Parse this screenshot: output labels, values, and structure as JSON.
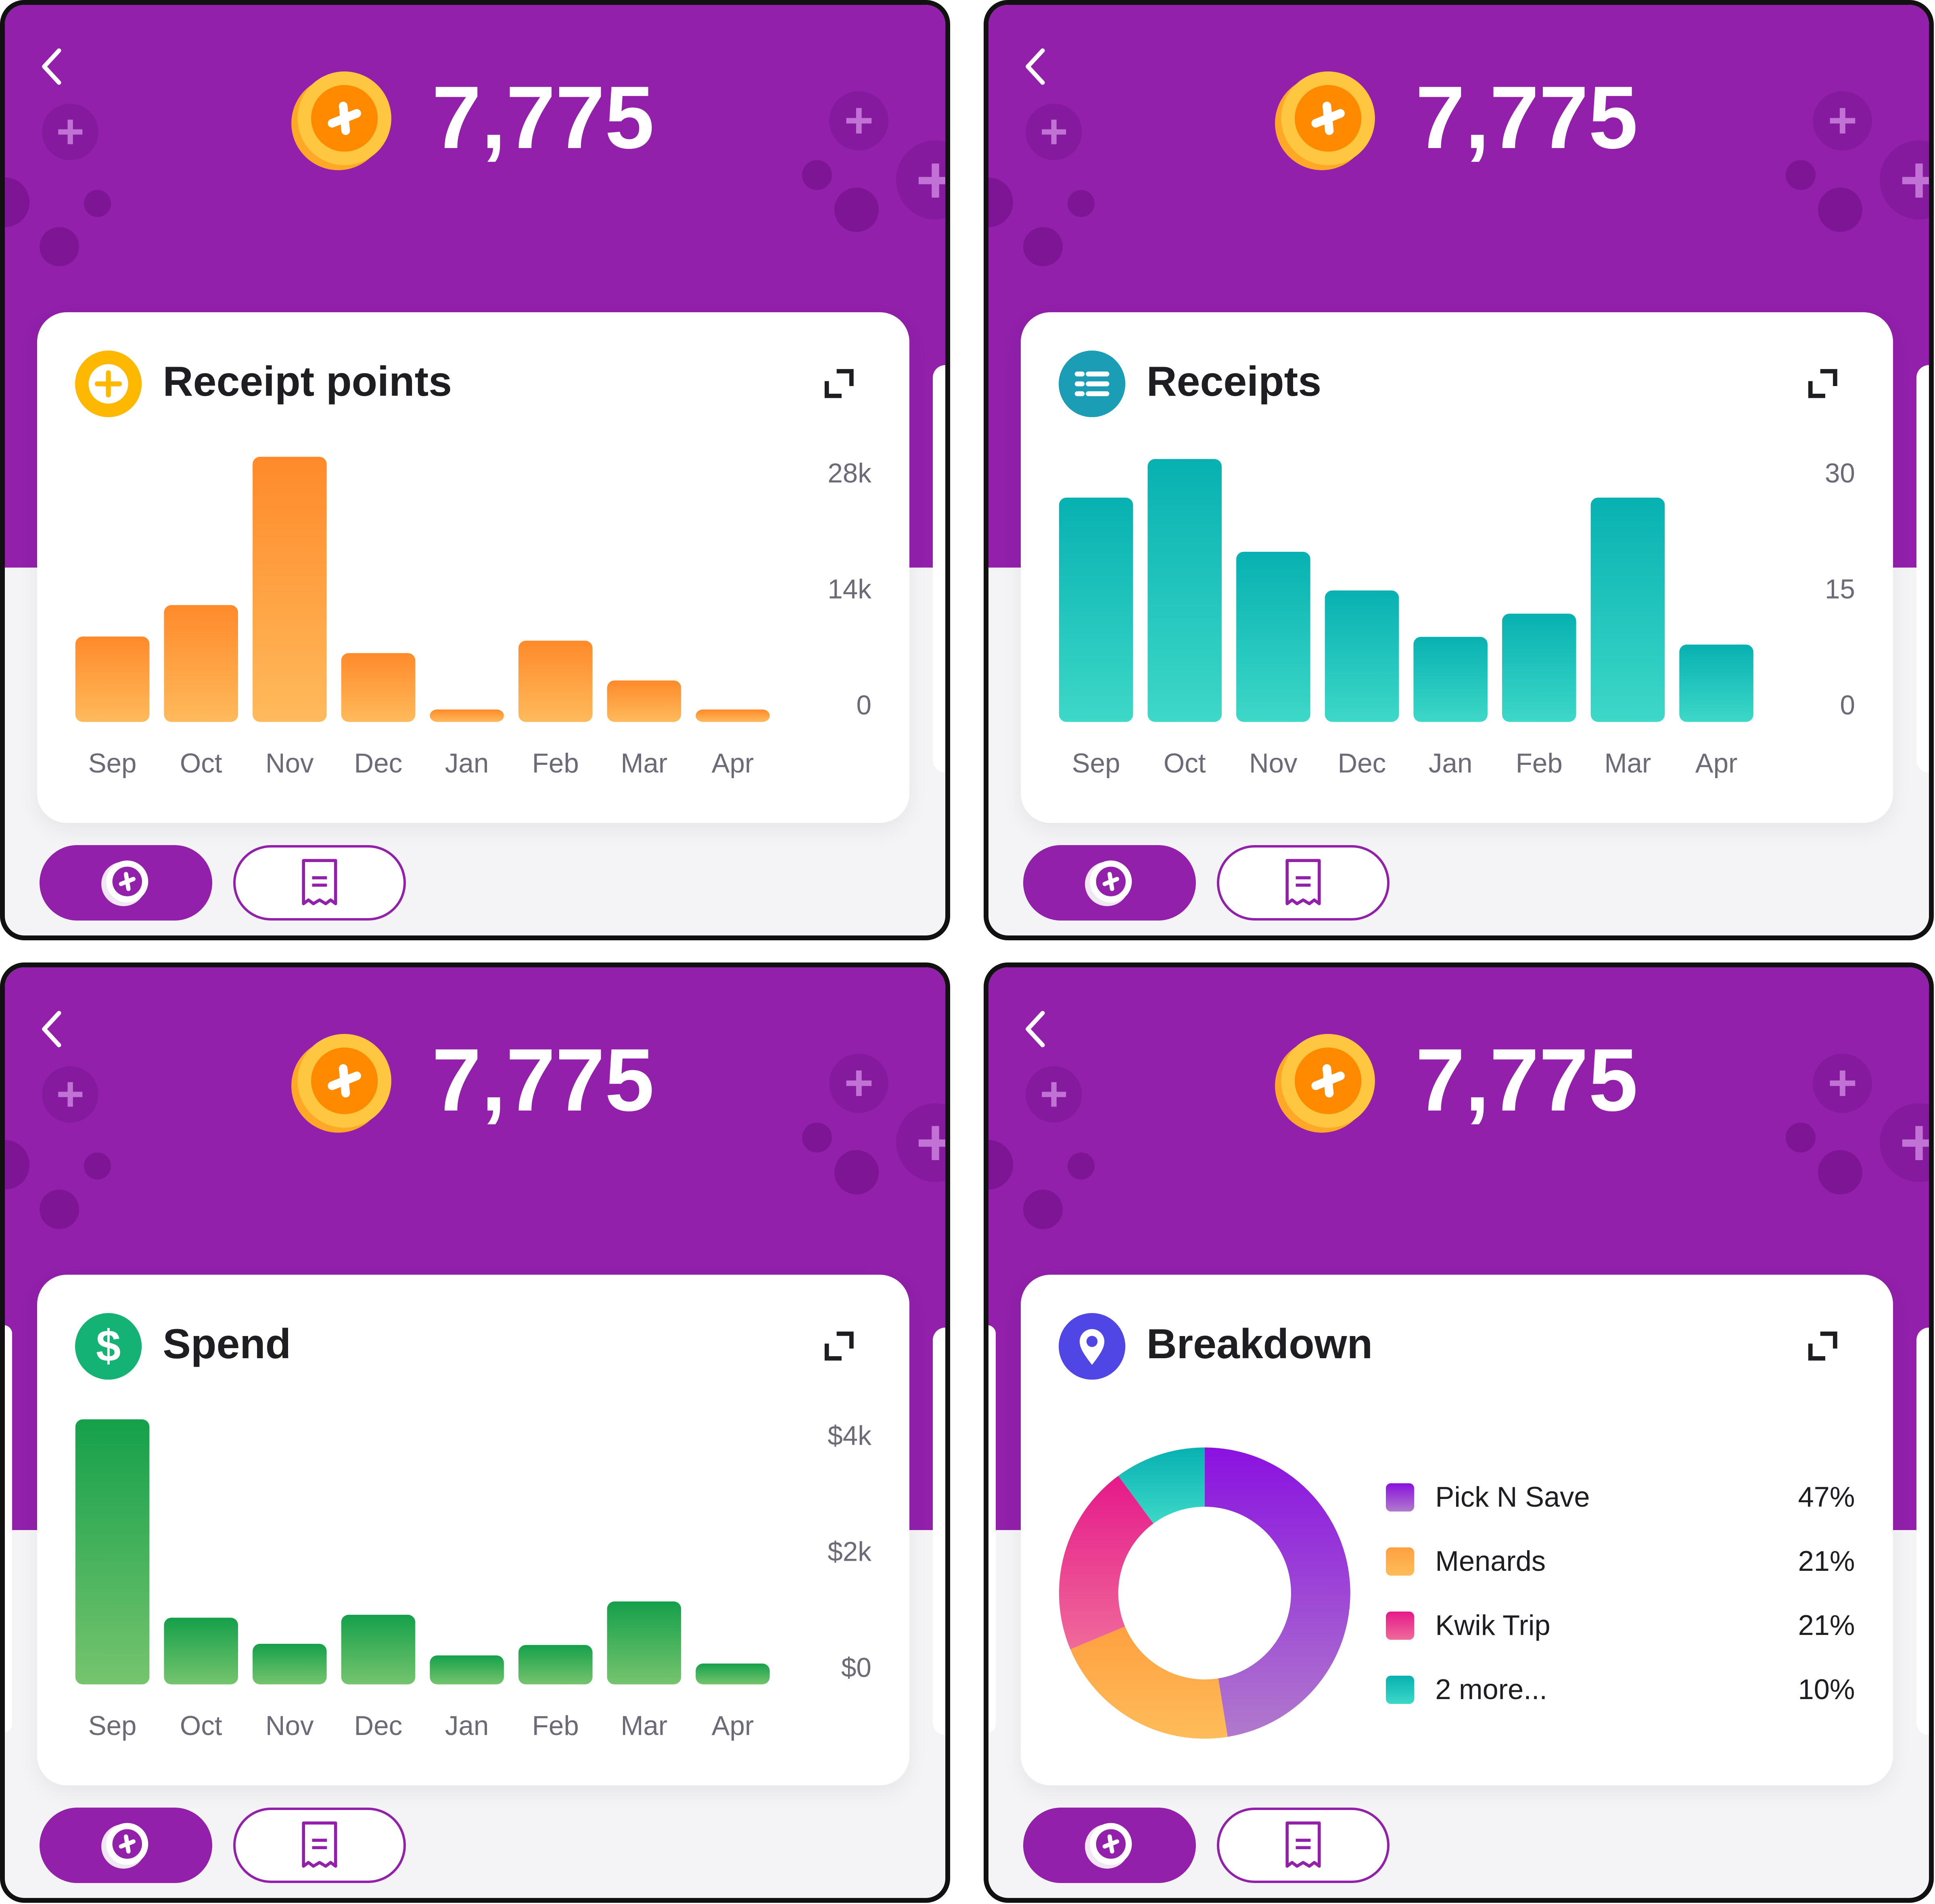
{
  "points_total": "7,775",
  "colors": {
    "brand_purple": "#9220AA",
    "orange_top": "#FF8A2A",
    "orange_bottom": "#FFBA5C",
    "teal_top": "#07B1B1",
    "teal_bottom": "#3DD8C8",
    "green_top": "#15A04A",
    "green_bottom": "#76C46E",
    "coin": "#FFC640",
    "coin_center": "#FF8A00"
  },
  "icons": {
    "back": "chevron-left-icon",
    "coin": "coin-plus-icon",
    "expand": "expand-icon",
    "points_button": "coin-icon",
    "receipts_button": "receipt-icon"
  },
  "panels": [
    {
      "title": "Receipt points",
      "icon": "plus-circle-icon",
      "icon_color": "#FFB800"
    },
    {
      "title": "Receipts",
      "icon": "list-icon",
      "icon_color": "#1A9DB5"
    },
    {
      "title": "Spend",
      "icon": "dollar-icon",
      "icon_color": "#14B374"
    },
    {
      "title": "Breakdown",
      "icon": "location-pin-icon",
      "icon_color": "#4F46E5"
    }
  ],
  "chart_data": [
    {
      "type": "bar",
      "title": "Receipt points",
      "categories": [
        "Sep",
        "Oct",
        "Nov",
        "Dec",
        "Jan",
        "Feb",
        "Mar",
        "Apr"
      ],
      "values": [
        10300,
        14100,
        32000,
        8300,
        1500,
        9800,
        5000,
        1500
      ],
      "yticks": [
        0,
        14000,
        28000
      ],
      "ytick_labels": [
        "0",
        "14k",
        "28k"
      ],
      "ylim": [
        0,
        32000
      ],
      "axis_side": "right",
      "grid": false
    },
    {
      "type": "bar",
      "title": "Receipts",
      "categories": [
        "Sep",
        "Oct",
        "Nov",
        "Dec",
        "Jan",
        "Feb",
        "Mar",
        "Apr"
      ],
      "values": [
        29,
        34,
        22,
        17,
        11,
        14,
        29,
        10
      ],
      "yticks": [
        0,
        15,
        30
      ],
      "ytick_labels": [
        "0",
        "15",
        "30"
      ],
      "ylim": [
        0,
        34
      ],
      "axis_side": "right",
      "grid": false
    },
    {
      "type": "bar",
      "title": "Spend",
      "categories": [
        "Sep",
        "Oct",
        "Nov",
        "Dec",
        "Jan",
        "Feb",
        "Mar",
        "Apr"
      ],
      "values": [
        4570,
        1150,
        700,
        1200,
        500,
        680,
        1430,
        360
      ],
      "yticks": [
        0,
        2000,
        4000
      ],
      "ytick_labels": [
        "$0",
        "$2k",
        "$4k"
      ],
      "ylim": [
        0,
        4570
      ],
      "axis_side": "right",
      "grid": false
    },
    {
      "type": "pie",
      "title": "Breakdown",
      "donut": true,
      "labels": [
        "Pick N Save",
        "Menards",
        "Kwik Trip",
        "2 more..."
      ],
      "values": [
        47,
        21,
        21,
        10
      ],
      "value_labels": [
        "47%",
        "21%",
        "21%",
        "10%"
      ],
      "colors": [
        [
          "#8A12E0",
          "#B07ACC"
        ],
        [
          "#FFA040",
          "#FFBC5A"
        ],
        [
          "#E5198A",
          "#F06A9A"
        ],
        [
          "#07B1B1",
          "#3DD8C8"
        ]
      ],
      "legend_placement": "right"
    }
  ]
}
